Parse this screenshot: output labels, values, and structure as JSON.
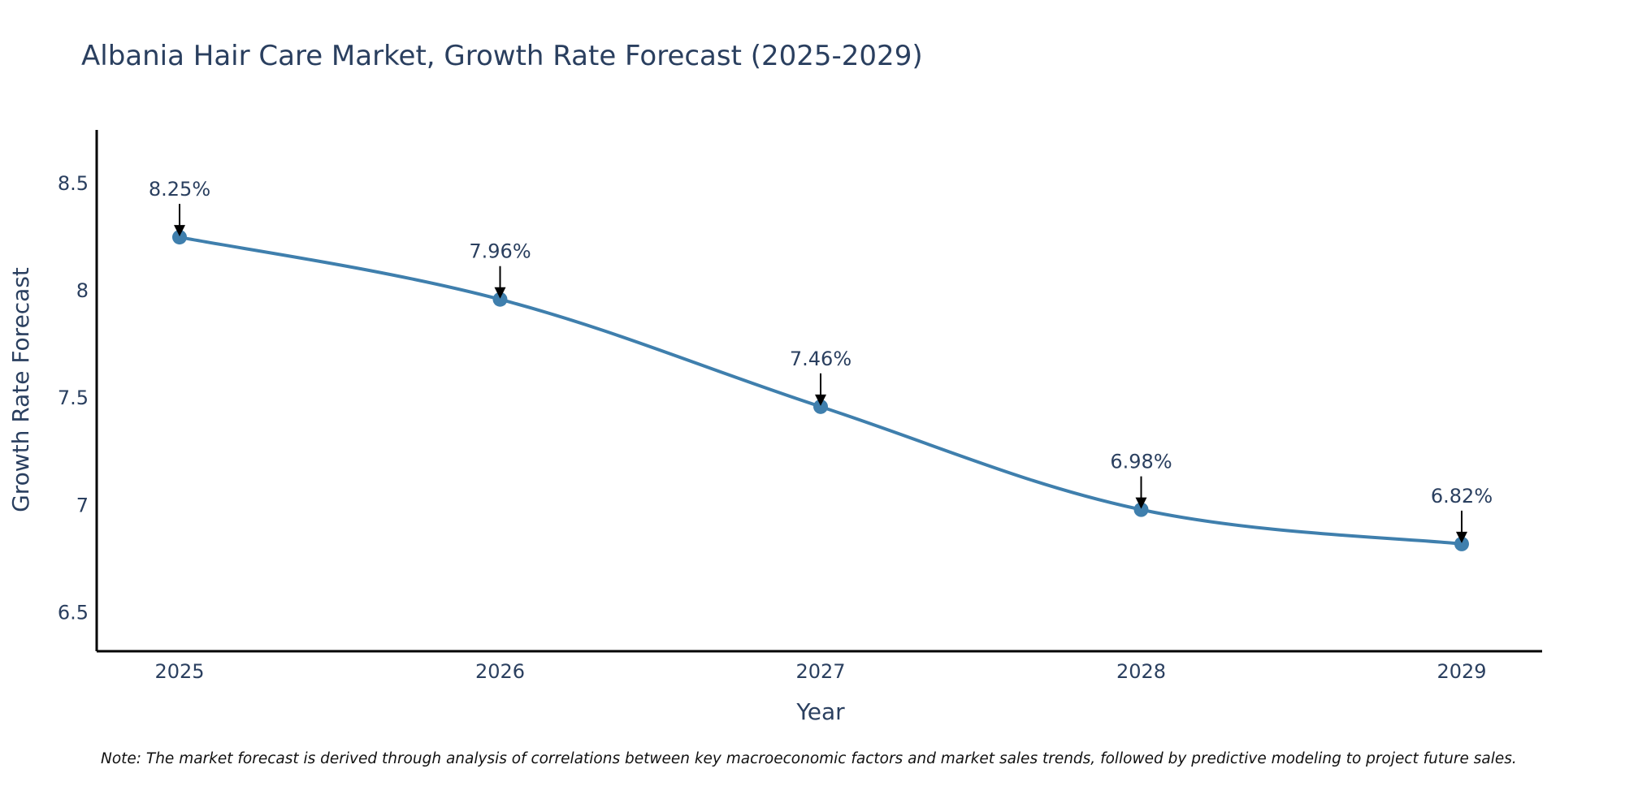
{
  "chart_data": {
    "type": "line",
    "title": "Albania Hair Care Market, Growth Rate Forecast (2025-2029)",
    "xlabel": "Year",
    "ylabel": "Growth Rate Forecast",
    "categories": [
      "2025",
      "2026",
      "2027",
      "2028",
      "2029"
    ],
    "series": [
      {
        "name": "Growth Rate Forecast",
        "values": [
          8.25,
          7.96,
          7.46,
          6.98,
          6.82
        ],
        "labels": [
          "8.25%",
          "7.96%",
          "7.46%",
          "6.98%",
          "6.82%"
        ],
        "color": "#3f7fad"
      }
    ],
    "ylim": [
      6.32,
      8.75
    ],
    "yticks": [
      6.5,
      7,
      7.5,
      8,
      8.5
    ],
    "ytick_labels": [
      "6.5",
      "7",
      "7.5",
      "8",
      "8.5"
    ],
    "grid": false,
    "line_shape": "spline",
    "note": "Note: The market forecast is derived through analysis of correlations between key macroeconomic factors and market sales trends, followed by predictive modeling to project future sales."
  },
  "colors": {
    "text": "#2a3f5f",
    "axis": "#000000",
    "arrow": "#000000",
    "line": "#3f7fad"
  }
}
